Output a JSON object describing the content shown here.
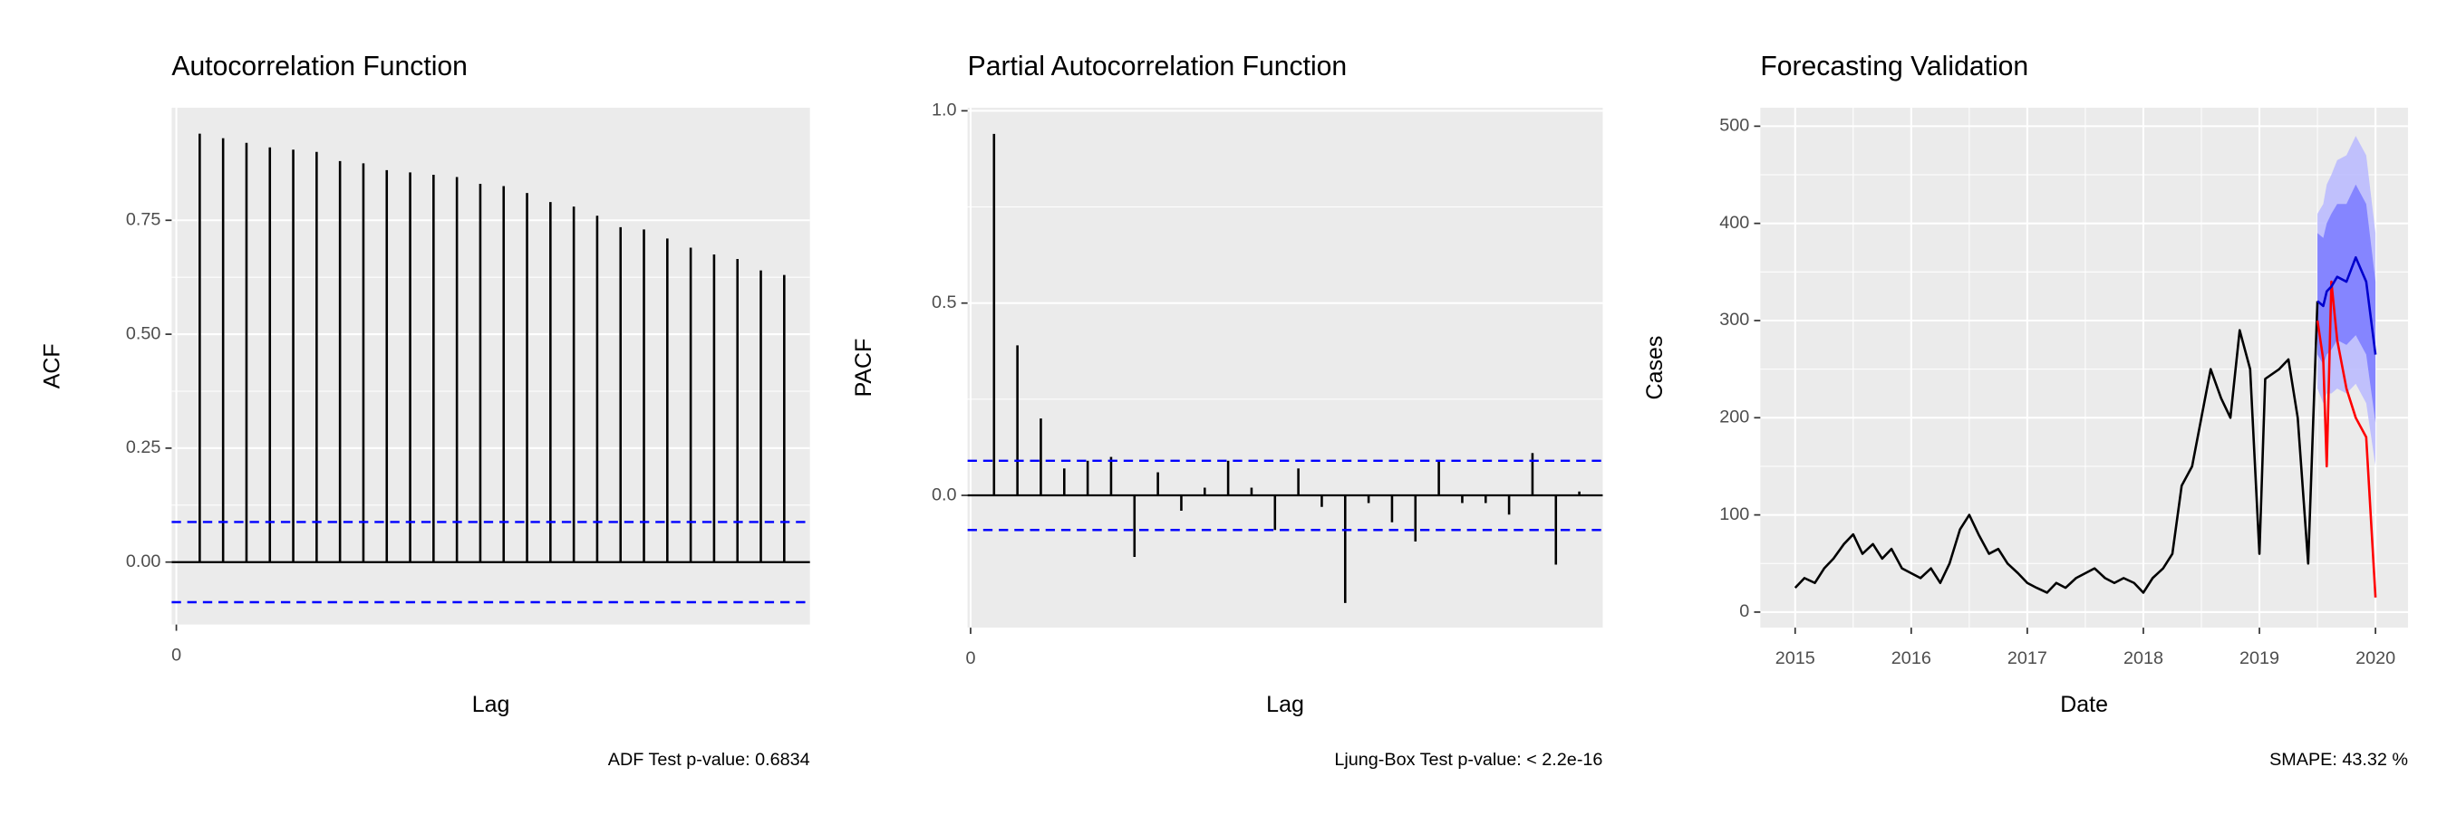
{
  "chart_data": [
    {
      "type": "stem",
      "title": "Autocorrelation Function",
      "x_label": "Lag",
      "y_label": "ACF",
      "caption": "ADF Test p-value: 0.6834",
      "x": [
        1,
        2,
        3,
        4,
        5,
        6,
        7,
        8,
        9,
        10,
        11,
        12,
        13,
        14,
        15,
        16,
        17,
        18,
        19,
        20,
        21,
        22,
        23,
        24,
        25,
        26
      ],
      "values": [
        0.94,
        0.93,
        0.92,
        0.91,
        0.905,
        0.9,
        0.88,
        0.875,
        0.86,
        0.855,
        0.85,
        0.845,
        0.83,
        0.825,
        0.81,
        0.79,
        0.78,
        0.76,
        0.735,
        0.73,
        0.71,
        0.69,
        0.675,
        0.665,
        0.64,
        0.63
      ],
      "color": "#000000",
      "ci_lines": [
        0.088,
        -0.088
      ],
      "ci_color": "#0000ff",
      "xlim": [
        -0.2,
        27.1
      ],
      "ylim": [
        -0.137,
        0.997
      ],
      "xticks": [
        0
      ],
      "yticks": [
        {
          "value": 0,
          "label": "0.00"
        },
        {
          "value": 0.25,
          "label": "0.25"
        },
        {
          "value": 0.5,
          "label": "0.50"
        },
        {
          "value": 0.75,
          "label": "0.75"
        }
      ],
      "grid": true
    },
    {
      "type": "stem",
      "title": "Partial Autocorrelation Function",
      "x_label": "Lag",
      "y_label": "PACF",
      "caption": "Ljung-Box Test p-value: < 2.2e-16",
      "x": [
        1,
        2,
        3,
        4,
        5,
        6,
        7,
        8,
        9,
        10,
        11,
        12,
        13,
        14,
        15,
        16,
        17,
        18,
        19,
        20,
        21,
        22,
        23,
        24,
        25,
        26
      ],
      "values": [
        0.94,
        0.39,
        0.2,
        0.07,
        0.09,
        0.1,
        -0.16,
        0.06,
        -0.04,
        0.02,
        0.09,
        0.02,
        -0.09,
        0.07,
        -0.03,
        -0.28,
        -0.02,
        -0.07,
        -0.12,
        0.09,
        -0.02,
        -0.02,
        -0.05,
        0.11,
        -0.18,
        0.01
      ],
      "color": "#000000",
      "ci_lines": [
        0.09,
        -0.09
      ],
      "ci_color": "#0000ff",
      "xlim": [
        -0.13,
        27
      ],
      "ylim": [
        -0.344,
        1.008
      ],
      "xticks": [
        0
      ],
      "yticks": [
        {
          "value": 0,
          "label": "0.0"
        },
        {
          "value": 0.5,
          "label": "0.5"
        },
        {
          "value": 1,
          "label": "1.0"
        }
      ],
      "grid": true
    },
    {
      "type": "line",
      "title": "Forecasting Validation",
      "x_label": "Date",
      "y_label": "Cases",
      "caption": "SMAPE:  43.32 %",
      "bands": [
        {
          "color": "#b8b8ff",
          "x": [
            2019.5,
            2019.55,
            2019.58,
            2019.62,
            2019.67,
            2019.75,
            2019.83,
            2019.92,
            2020.0
          ],
          "lower": [
            230,
            215,
            225,
            225,
            230,
            225,
            235,
            215,
            150
          ],
          "upper": [
            410,
            420,
            440,
            450,
            465,
            470,
            490,
            470,
            390
          ]
        },
        {
          "color": "#7a7aff",
          "x": [
            2019.5,
            2019.55,
            2019.58,
            2019.62,
            2019.67,
            2019.75,
            2019.83,
            2019.92,
            2020.0
          ],
          "lower": [
            265,
            255,
            265,
            270,
            280,
            275,
            285,
            265,
            195
          ],
          "upper": [
            390,
            385,
            400,
            410,
            420,
            420,
            440,
            420,
            340
          ]
        }
      ],
      "series": [
        {
          "color": "#000000",
          "x": [
            2015.0,
            2015.08,
            2015.17,
            2015.25,
            2015.33,
            2015.42,
            2015.5,
            2015.58,
            2015.67,
            2015.75,
            2015.83,
            2015.92,
            2016.0,
            2016.08,
            2016.17,
            2016.25,
            2016.33,
            2016.42,
            2016.5,
            2016.58,
            2016.67,
            2016.75,
            2016.83,
            2016.92,
            2017.0,
            2017.08,
            2017.17,
            2017.25,
            2017.33,
            2017.42,
            2017.5,
            2017.58,
            2017.67,
            2017.75,
            2017.83,
            2017.92,
            2018.0,
            2018.08,
            2018.17,
            2018.25,
            2018.33,
            2018.42,
            2018.5,
            2018.58,
            2018.67,
            2018.75,
            2018.83,
            2018.92,
            2019.0,
            2019.05,
            2019.17,
            2019.25,
            2019.33,
            2019.42,
            2019.5
          ],
          "values": [
            25,
            35,
            30,
            45,
            55,
            70,
            80,
            60,
            70,
            55,
            65,
            45,
            40,
            35,
            45,
            30,
            50,
            85,
            100,
            80,
            60,
            65,
            50,
            40,
            30,
            25,
            20,
            30,
            25,
            35,
            40,
            45,
            35,
            30,
            35,
            30,
            20,
            35,
            45,
            60,
            130,
            150,
            200,
            250,
            220,
            200,
            290,
            250,
            60,
            240,
            250,
            260,
            200,
            50,
            320
          ]
        },
        {
          "color": "#ff0000",
          "x": [
            2019.5,
            2019.55,
            2019.58,
            2019.62,
            2019.67,
            2019.75,
            2019.83,
            2019.92,
            2020.0
          ],
          "values": [
            300,
            260,
            150,
            340,
            280,
            230,
            200,
            180,
            15
          ]
        },
        {
          "color": "#0000cd",
          "x": [
            2019.5,
            2019.55,
            2019.58,
            2019.62,
            2019.67,
            2019.75,
            2019.83,
            2019.92,
            2020.0
          ],
          "values": [
            320,
            315,
            330,
            335,
            345,
            340,
            365,
            340,
            265
          ]
        }
      ],
      "xlim": [
        2014.7,
        2020.28
      ],
      "ylim": [
        -16,
        519
      ],
      "xticks": [
        2015,
        2016,
        2017,
        2018,
        2019,
        2020
      ],
      "yticks": [
        0,
        100,
        200,
        300,
        400,
        500
      ],
      "grid": true
    }
  ]
}
